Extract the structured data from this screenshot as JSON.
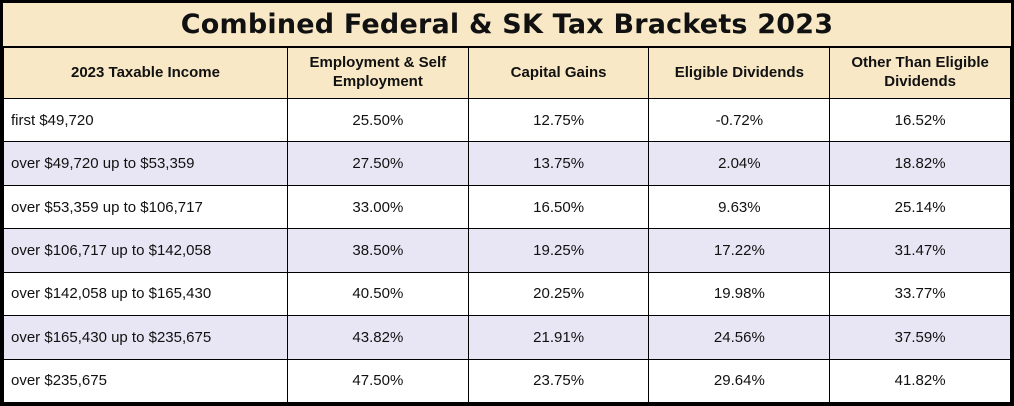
{
  "title": "Combined Federal & SK Tax Brackets 2023",
  "colors": {
    "header_bg": "#f8e8c6",
    "alt_row_bg": "#e8e6f4",
    "border": "#000000"
  },
  "chart_data": {
    "type": "table",
    "title": "Combined Federal & SK Tax Brackets 2023",
    "columns": [
      "2023 Taxable Income",
      "Employment & Self Employment",
      "Capital Gains",
      "Eligible Dividends",
      "Other Than Eligible Dividends"
    ],
    "rows": [
      [
        "first $49,720",
        "25.50%",
        "12.75%",
        "-0.72%",
        "16.52%"
      ],
      [
        "over $49,720 up to $53,359",
        "27.50%",
        "13.75%",
        "2.04%",
        "18.82%"
      ],
      [
        "over $53,359 up to $106,717",
        "33.00%",
        "16.50%",
        "9.63%",
        "25.14%"
      ],
      [
        "over $106,717 up to $142,058",
        "38.50%",
        "19.25%",
        "17.22%",
        "31.47%"
      ],
      [
        "over $142,058 up to $165,430",
        "40.50%",
        "20.25%",
        "19.98%",
        "33.77%"
      ],
      [
        "over $165,430 up to $235,675",
        "43.82%",
        "21.91%",
        "24.56%",
        "37.59%"
      ],
      [
        "over $235,675",
        "47.50%",
        "23.75%",
        "29.64%",
        "41.82%"
      ]
    ]
  }
}
